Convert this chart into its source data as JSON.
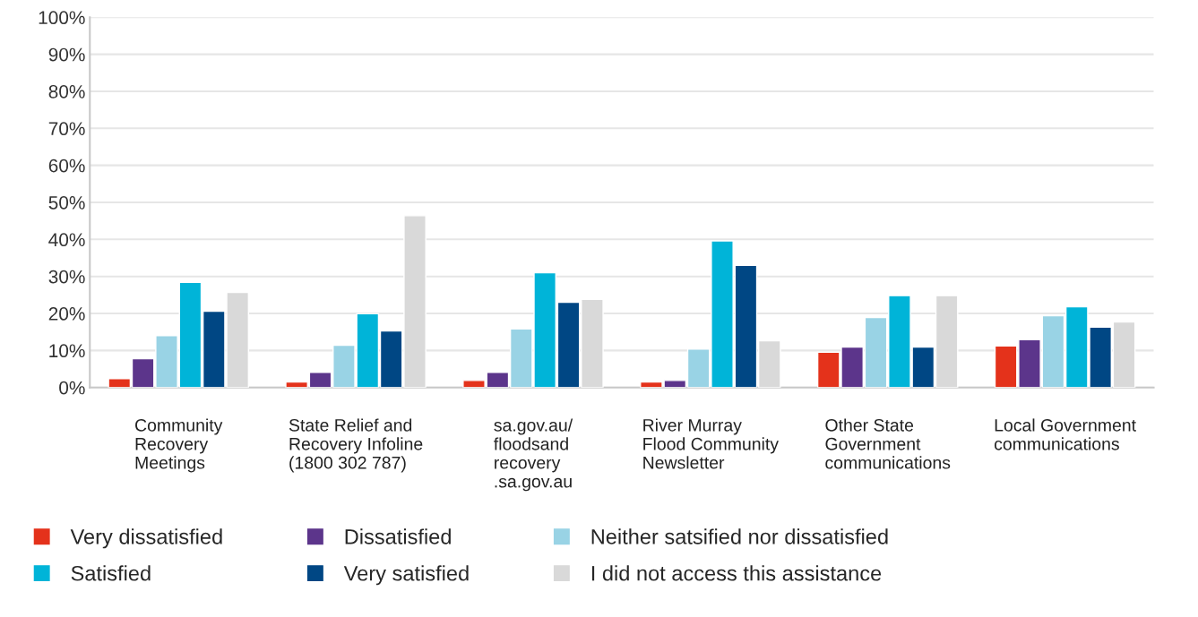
{
  "chart_data": {
    "type": "bar",
    "categories": [
      "Community\nRecovery\nMeetings",
      "State Relief and\nRecovery Infoline\n(1800 302 787)",
      "sa.gov.au/\nfloodsand\nrecovery\n.sa.gov.au",
      "River Murray\nFlood Community\nNewsletter",
      "Other State\nGovernment\ncommunications",
      "Local Government\ncommunications"
    ],
    "series": [
      {
        "name": "Very dissatisfied",
        "color": "#e4321b",
        "values": [
          2.4,
          1.5,
          1.9,
          1.5,
          9.5,
          11.2
        ]
      },
      {
        "name": "Dissatisfied",
        "color": "#5c358b",
        "values": [
          7.8,
          4.1,
          4.1,
          1.9,
          10.9,
          12.9
        ]
      },
      {
        "name": "Neither satsified nor dissatisfied",
        "color": "#99d3e5",
        "values": [
          14,
          11.4,
          15.8,
          10.4,
          18.9,
          19.4
        ]
      },
      {
        "name": "Satisfied",
        "color": "#00b4d8",
        "values": [
          28.4,
          19.9,
          31,
          39.6,
          24.8,
          21.8
        ]
      },
      {
        "name": "Very satisfied",
        "color": "#004784",
        "values": [
          20.6,
          15.3,
          23,
          33,
          10.9,
          16.3
        ]
      },
      {
        "name": "I did not access this assistance",
        "color": "#d9d9d9",
        "values": [
          25.7,
          46.4,
          23.8,
          12.6,
          24.8,
          17.7
        ]
      }
    ],
    "ylim": [
      0,
      100
    ],
    "yticks": [
      {
        "value": 0,
        "label": "0%"
      },
      {
        "value": 10,
        "label": "10%"
      },
      {
        "value": 20,
        "label": "20%"
      },
      {
        "value": 30,
        "label": "30%"
      },
      {
        "value": 40,
        "label": "40%"
      },
      {
        "value": 50,
        "label": "50%"
      },
      {
        "value": 60,
        "label": "60%"
      },
      {
        "value": 70,
        "label": "70%"
      },
      {
        "value": 80,
        "label": "80%"
      },
      {
        "value": 90,
        "label": "90%"
      },
      {
        "value": 100,
        "label": "100%"
      }
    ],
    "grid": "y",
    "legend": "bottom"
  }
}
